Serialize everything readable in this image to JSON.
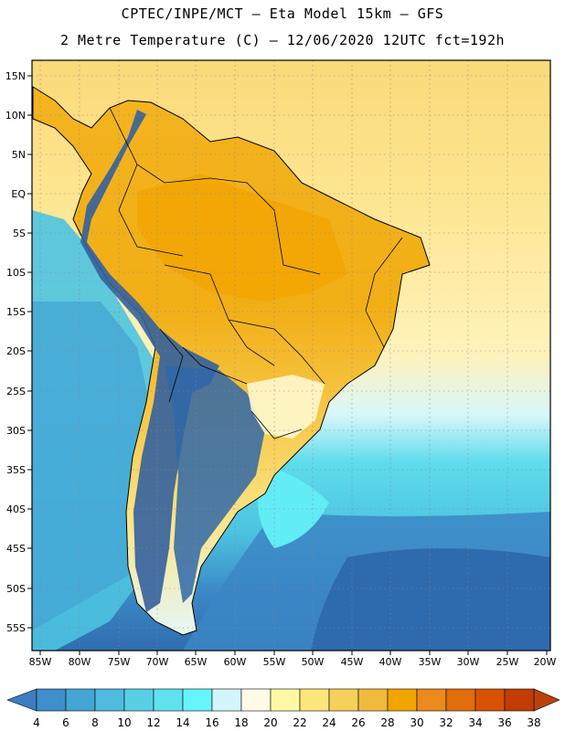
{
  "header": {
    "line1": "CPTEC/INPE/MCT –  Eta Model 15km – GFS",
    "line2": "2 Metre Temperature (C) – 12/06/2020 12UTC fct=192h"
  },
  "axes": {
    "lat_labels": [
      "15N",
      "10N",
      "5N",
      "EQ",
      "5S",
      "10S",
      "15S",
      "20S",
      "25S",
      "30S",
      "35S",
      "40S",
      "45S",
      "50S",
      "55S"
    ],
    "lon_labels": [
      "85W",
      "80W",
      "75W",
      "70W",
      "65W",
      "60W",
      "55W",
      "50W",
      "45W",
      "40W",
      "35W",
      "30W",
      "25W",
      "20W"
    ]
  },
  "colorbar": {
    "labels": [
      "4",
      "6",
      "8",
      "10",
      "12",
      "14",
      "16",
      "18",
      "20",
      "22",
      "24",
      "26",
      "28",
      "30",
      "32",
      "34",
      "36",
      "38"
    ],
    "colors": [
      "#3c7ec0",
      "#3f8fcc",
      "#44a6d4",
      "#4fbbdf",
      "#59cfe6",
      "#5fe1ee",
      "#66f5fb",
      "#d3f5fb",
      "#fffbe6",
      "#fff9a3",
      "#fde67b",
      "#f5d05a",
      "#f0ba3c",
      "#f2a400",
      "#eb8a1d",
      "#e16d0b",
      "#d95200",
      "#c23c03",
      "#b8420a"
    ]
  },
  "colors": {
    "ocean_deep": "#2e6aae",
    "ocean_mid": "#3b86c6",
    "ocean_cyan": "#55cbe3",
    "ocean_bright": "#62ecf6",
    "warm_sea": "#fff6c4",
    "land_hot": "#f1a912",
    "land_warm": "#f7c94a",
    "andes_cold": "#33609e"
  }
}
